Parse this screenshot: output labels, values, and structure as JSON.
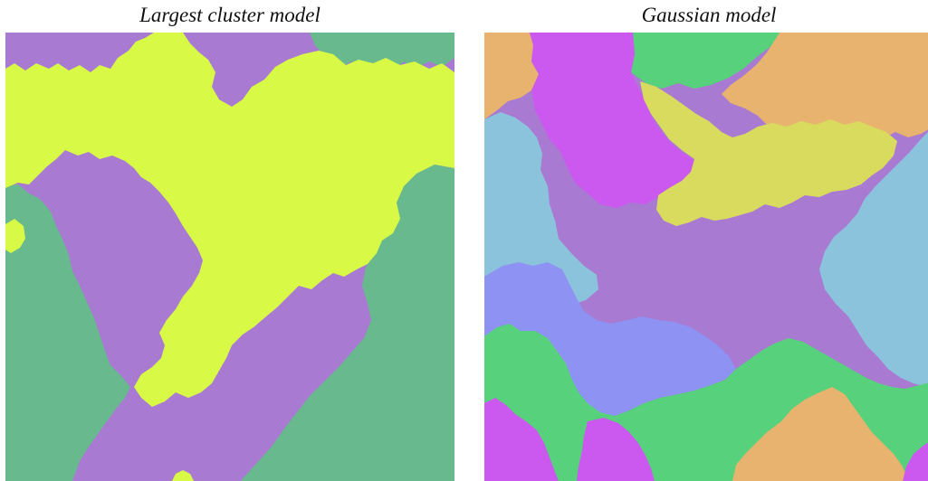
{
  "left_panel": {
    "title": "Largest cluster model",
    "colors": {
      "purple": "#a97ad2",
      "yellow": "#d8fa47",
      "green": "#68b98d"
    }
  },
  "right_panel": {
    "title": "Gaussian model",
    "colors": {
      "orange": "#e7b36e",
      "magenta": "#cb59f0",
      "green": "#57d17b",
      "light_blue": "#8bc3dd",
      "olive_yellow": "#d9db5e",
      "purple": "#a97ad2",
      "periwinkle": "#8d92f3"
    }
  }
}
